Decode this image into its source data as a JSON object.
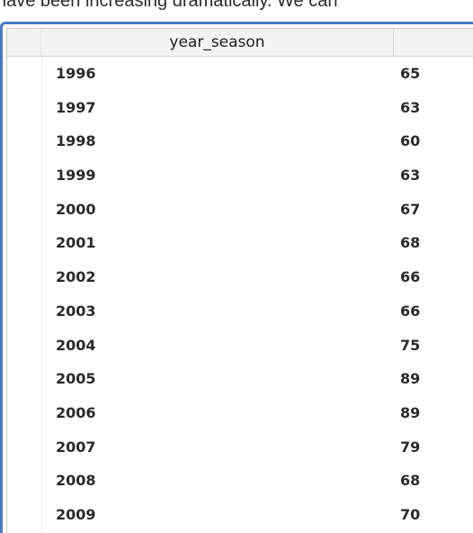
{
  "intro_text": "have been increasing dramatically. We can",
  "table": {
    "columns": [
      "year_season",
      ""
    ],
    "rows": [
      {
        "year": "1996",
        "count": "65"
      },
      {
        "year": "1997",
        "count": "63"
      },
      {
        "year": "1998",
        "count": "60"
      },
      {
        "year": "1999",
        "count": "63"
      },
      {
        "year": "2000",
        "count": "67"
      },
      {
        "year": "2001",
        "count": "68"
      },
      {
        "year": "2002",
        "count": "66"
      },
      {
        "year": "2003",
        "count": "66"
      },
      {
        "year": "2004",
        "count": "75"
      },
      {
        "year": "2005",
        "count": "89"
      },
      {
        "year": "2006",
        "count": "89"
      },
      {
        "year": "2007",
        "count": "79"
      },
      {
        "year": "2008",
        "count": "68"
      },
      {
        "year": "2009",
        "count": "70"
      }
    ]
  },
  "colors": {
    "frame_border": "#4a78c2",
    "header_bg": "#f3f3f3"
  }
}
